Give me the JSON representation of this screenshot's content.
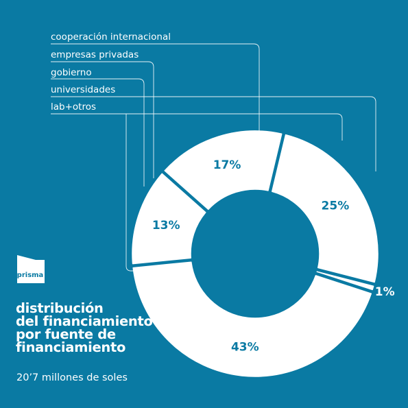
{
  "brand": {
    "name": "prisma"
  },
  "title_lines": [
    "distribución",
    "del financiamiento",
    "por fuente de",
    "financiamiento"
  ],
  "subtitle": "20’7 millones de soles",
  "colors": {
    "background": "#0a7aa3",
    "segment": "#ffffff",
    "label": "#0a7aa3",
    "line": "#ffffff"
  },
  "chart_data": {
    "type": "pie",
    "variant": "donut",
    "categories": [
      "cooperación internacional",
      "empresas privadas",
      "gobierno",
      "universidades",
      "lab+otros"
    ],
    "values": [
      43,
      25,
      17,
      13,
      1
    ],
    "labels": [
      "43%",
      "25%",
      "17%",
      "13%",
      "1%"
    ],
    "legend": "top-left"
  }
}
